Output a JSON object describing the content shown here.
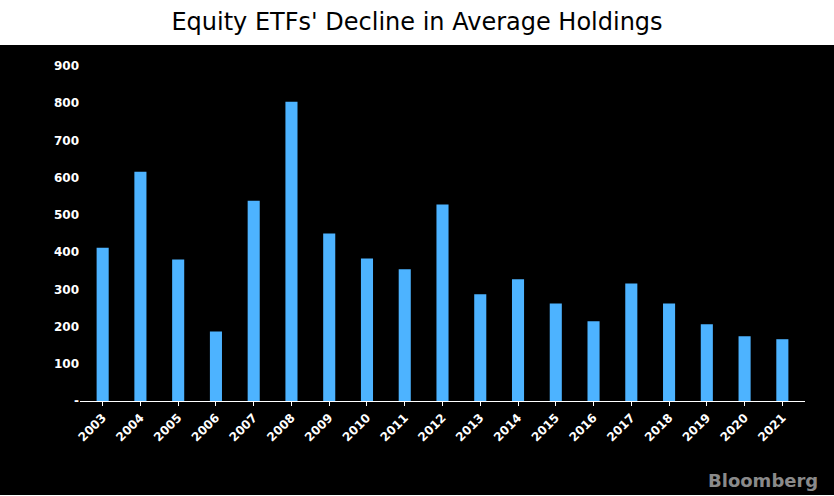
{
  "chart_data": {
    "type": "bar",
    "title": "Equity ETFs' Decline in Average Holdings",
    "categories": [
      "2003",
      "2004",
      "2005",
      "2006",
      "2007",
      "2008",
      "2009",
      "2010",
      "2011",
      "2012",
      "2013",
      "2014",
      "2015",
      "2016",
      "2017",
      "2018",
      "2019",
      "2020",
      "2021"
    ],
    "values": [
      412,
      616,
      380,
      187,
      538,
      804,
      450,
      383,
      354,
      528,
      287,
      327,
      262,
      214,
      316,
      262,
      206,
      174,
      166
    ],
    "color": "#4db3ff",
    "ylim": [
      0,
      900
    ],
    "yticks": [
      {
        "value": 0,
        "label": "-"
      },
      100,
      200,
      300,
      400,
      500,
      600,
      700,
      800,
      900
    ],
    "grid": false,
    "source": "Bloomberg"
  }
}
